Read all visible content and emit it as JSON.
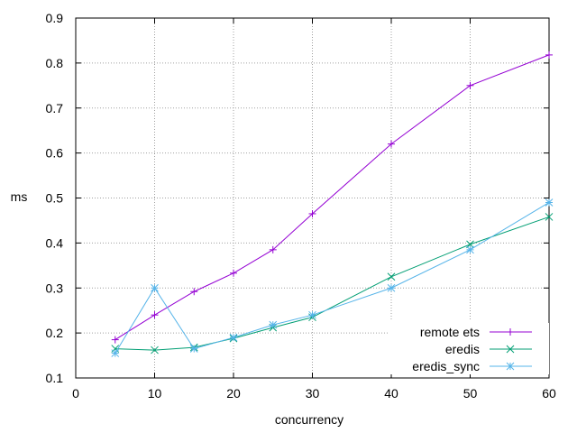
{
  "chart_data": {
    "type": "line",
    "title": "",
    "xlabel": "concurrency",
    "ylabel": "ms",
    "xlim": [
      0,
      60
    ],
    "ylim": [
      0.1,
      0.9
    ],
    "xticks": [
      0,
      10,
      20,
      30,
      40,
      50,
      60
    ],
    "yticks": [
      0.1,
      0.2,
      0.3,
      0.4,
      0.5,
      0.6,
      0.7,
      0.8,
      0.9
    ],
    "xtick_labels": [
      "0",
      "10",
      "20",
      "30",
      "40",
      "50",
      "60"
    ],
    "ytick_labels": [
      "0.1",
      "0.2",
      "0.3",
      "0.4",
      "0.5",
      "0.6",
      "0.7",
      "0.8",
      "0.9"
    ],
    "grid": true,
    "legend_position": "bottom-right",
    "series": [
      {
        "name": "remote ets",
        "color": "#9400d3",
        "marker": "plus",
        "x": [
          5,
          10,
          15,
          20,
          25,
          30,
          40,
          50,
          60
        ],
        "y": [
          0.185,
          0.24,
          0.292,
          0.333,
          0.385,
          0.465,
          0.62,
          0.75,
          0.818
        ]
      },
      {
        "name": "eredis",
        "color": "#009e73",
        "marker": "cross",
        "x": [
          5,
          10,
          15,
          20,
          25,
          30,
          40,
          50,
          60
        ],
        "y": [
          0.165,
          0.162,
          0.168,
          0.188,
          0.212,
          0.235,
          0.325,
          0.397,
          0.458
        ]
      },
      {
        "name": "eredis_sync",
        "color": "#56b4e9",
        "marker": "star",
        "x": [
          5,
          10,
          15,
          20,
          25,
          30,
          40,
          50,
          60
        ],
        "y": [
          0.155,
          0.3,
          0.165,
          0.19,
          0.218,
          0.24,
          0.3,
          0.385,
          0.49
        ]
      }
    ]
  }
}
